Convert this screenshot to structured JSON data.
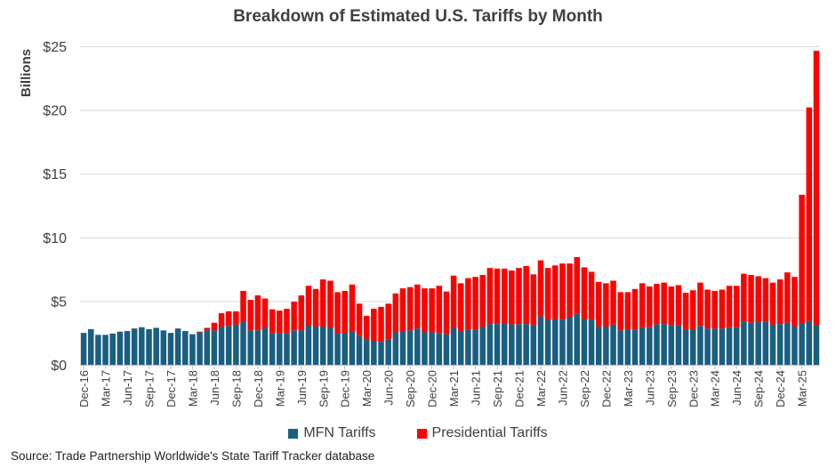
{
  "chart_data": {
    "type": "bar",
    "stacked": true,
    "title": "Breakdown of Estimated U.S. Tariffs by Month",
    "ylabel": "Billions",
    "xlabel": "",
    "ylim": [
      0,
      25
    ],
    "y_ticks": [
      "$0",
      "$5",
      "$10",
      "$15",
      "$20",
      "$25"
    ],
    "y_tick_values": [
      0,
      5,
      10,
      15,
      20,
      25
    ],
    "grid": true,
    "legend_position": "bottom",
    "x_start": "Dec-16",
    "x_tick_labels": [
      "Dec-16",
      "Mar-17",
      "Jun-17",
      "Sep-17",
      "Dec-17",
      "Mar-18",
      "Jun-18",
      "Sep-18",
      "Dec-18",
      "Mar-19",
      "Jun-19",
      "Sep-19",
      "Dec-19",
      "Mar-20",
      "Jun-20",
      "Sep-20",
      "Dec-20",
      "Mar-21",
      "Jun-21",
      "Sep-21",
      "Dec-21",
      "Mar-22",
      "Jun-22",
      "Sep-22",
      "Dec-22",
      "Mar-23",
      "Jun-23",
      "Sep-23",
      "Dec-23",
      "Mar-24",
      "Jun-24",
      "Sep-24",
      "Dec-24",
      "Mar-25"
    ],
    "series": [
      {
        "name": "MFN Tariffs",
        "color": "#1a5e80",
        "values": [
          2.5,
          2.8,
          2.35,
          2.35,
          2.45,
          2.6,
          2.65,
          2.85,
          2.95,
          2.8,
          2.9,
          2.7,
          2.5,
          2.85,
          2.65,
          2.4,
          2.55,
          2.7,
          2.7,
          3.0,
          3.05,
          3.15,
          3.35,
          2.7,
          2.7,
          2.9,
          2.5,
          2.45,
          2.5,
          2.7,
          2.7,
          3.07,
          3.0,
          3.0,
          2.9,
          2.45,
          2.45,
          2.65,
          2.25,
          1.95,
          1.85,
          1.8,
          2.0,
          2.55,
          2.65,
          2.7,
          2.85,
          2.55,
          2.55,
          2.5,
          2.4,
          2.9,
          2.65,
          2.75,
          2.75,
          3.0,
          3.2,
          3.2,
          3.25,
          3.15,
          3.2,
          3.2,
          3.1,
          3.8,
          3.5,
          3.6,
          3.55,
          3.7,
          4.0,
          3.6,
          3.55,
          3.0,
          3.0,
          3.15,
          2.7,
          2.8,
          2.75,
          2.95,
          2.95,
          3.2,
          3.2,
          3.1,
          3.1,
          2.8,
          2.8,
          3.05,
          2.85,
          2.85,
          2.85,
          2.95,
          2.95,
          3.4,
          3.3,
          3.35,
          3.4,
          3.15,
          3.2,
          3.3,
          3.0,
          3.25,
          3.45,
          3.1
        ]
      },
      {
        "name": "Presidential Tariffs",
        "color": "#ff0000",
        "values": [
          0,
          0,
          0,
          0,
          0,
          0,
          0,
          0,
          0,
          0,
          0,
          0,
          0,
          0,
          0,
          0,
          0.05,
          0.2,
          0.6,
          1.05,
          1.15,
          1.05,
          2.45,
          2.4,
          2.75,
          2.3,
          1.85,
          1.8,
          1.9,
          2.25,
          2.75,
          3.13,
          2.95,
          3.7,
          3.7,
          3.25,
          3.35,
          3.65,
          2.55,
          1.9,
          2.55,
          2.75,
          2.8,
          3.05,
          3.35,
          3.4,
          3.45,
          3.45,
          3.45,
          3.7,
          3.35,
          4.1,
          3.75,
          4.05,
          4.15,
          4.05,
          4.4,
          4.35,
          4.3,
          4.25,
          4.4,
          4.55,
          4.0,
          4.4,
          4.1,
          4.2,
          4.4,
          4.25,
          4.45,
          4.05,
          3.75,
          3.5,
          3.4,
          3.45,
          3.0,
          2.9,
          3.2,
          3.45,
          3.2,
          3.15,
          3.25,
          3.05,
          3.15,
          2.85,
          3.05,
          3.4,
          3.05,
          2.95,
          3.05,
          3.25,
          3.25,
          3.75,
          3.75,
          3.6,
          3.4,
          3.3,
          3.5,
          3.95,
          3.9,
          10.1,
          16.75,
          21.55
        ]
      }
    ],
    "source": "Source: Trade Partnership Worldwide's State Tariff Tracker database"
  }
}
